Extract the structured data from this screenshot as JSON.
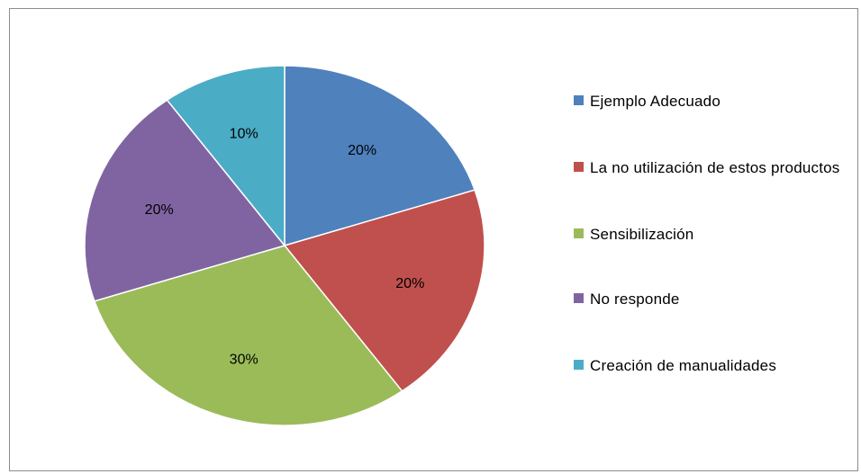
{
  "chart_data": {
    "type": "pie",
    "categories": [
      "Ejemplo Adecuado",
      "La no utilización de estos productos",
      "Sensibilización",
      "No responde",
      "Creación de manualidades"
    ],
    "values": [
      20,
      20,
      30,
      20,
      10
    ],
    "value_labels": [
      "20%",
      "20%",
      "30%",
      "20%",
      "10%"
    ],
    "colors": [
      "#4f81bd",
      "#c0504d",
      "#9bbb59",
      "#8064a2",
      "#4bacc6"
    ],
    "legend_position": "right",
    "title": ""
  }
}
